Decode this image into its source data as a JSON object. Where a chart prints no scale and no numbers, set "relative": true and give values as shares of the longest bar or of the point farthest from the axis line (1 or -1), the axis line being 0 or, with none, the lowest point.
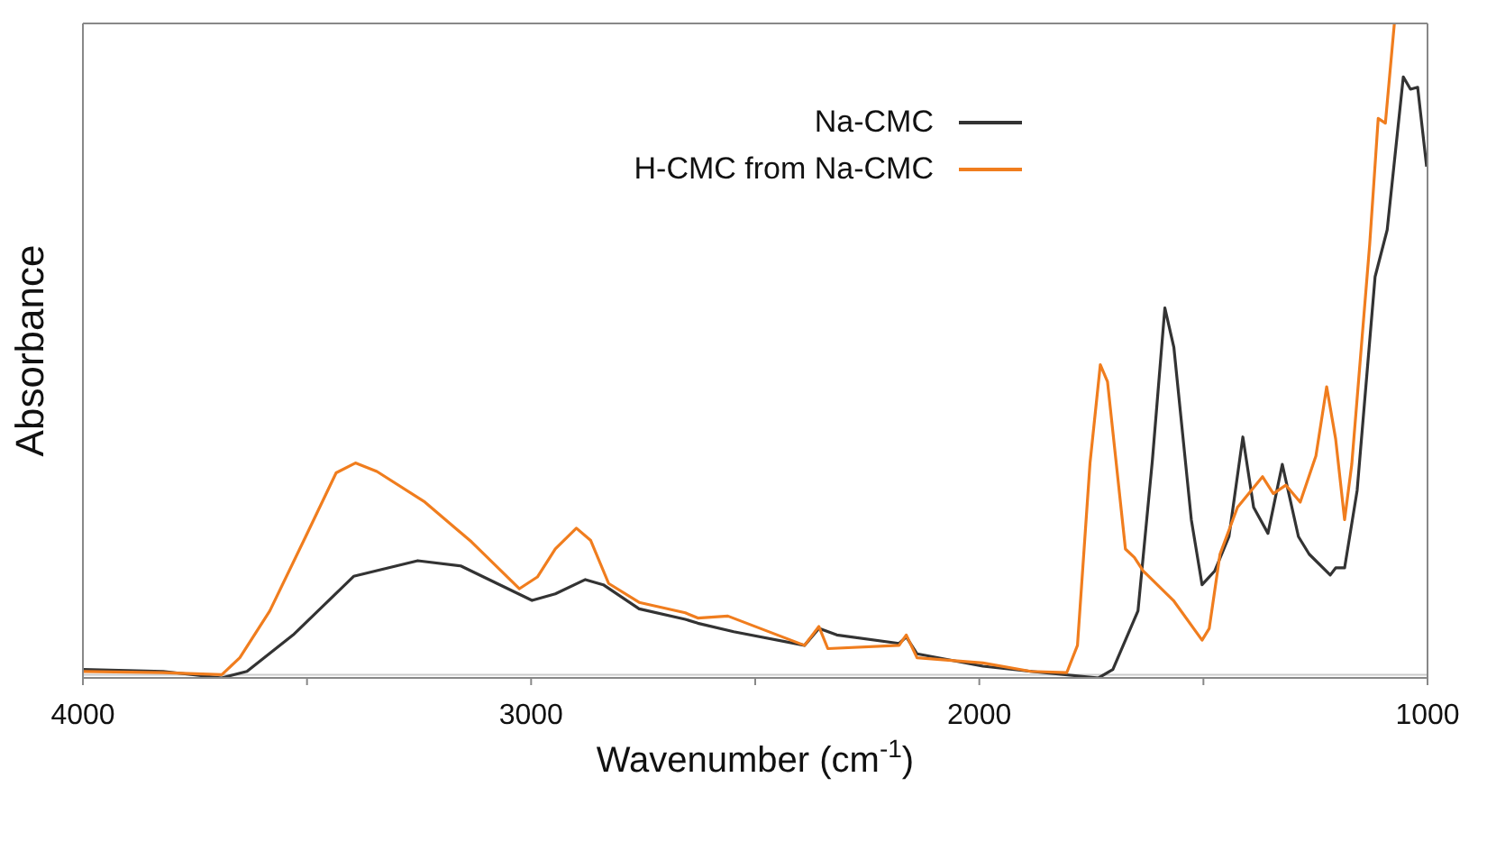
{
  "chart_data": {
    "type": "line",
    "relative": true,
    "xlabel": "Wavenumber (cm$^{-1}$)",
    "ylabel": "Absorbance",
    "xlim": [
      4000,
      1000
    ],
    "xticks": [
      4000,
      {
        "value": 3500,
        "label": null
      },
      3000,
      {
        "value": 2500,
        "label": null
      },
      2000,
      {
        "value": 1500,
        "label": null
      },
      1000
    ],
    "legend": "top right",
    "grid": false,
    "marker": "none",
    "line_style": "solid",
    "series": [
      {
        "name": "Na-CMC",
        "color": "#333333",
        "x": [
          4000,
          3821,
          3690,
          3634,
          3531,
          3396,
          3253,
          3157,
          2998,
          2946,
          2879,
          2839,
          2759,
          2656,
          2628,
          2548,
          2390,
          2358,
          2318,
          2179,
          2163,
          2139,
          1992,
          1885,
          1734,
          1702,
          1646,
          1614,
          1586,
          1566,
          1527,
          1503,
          1475,
          1443,
          1412,
          1388,
          1356,
          1324,
          1288,
          1264,
          1217,
          1205,
          1185,
          1157,
          1117,
          1090,
          1054,
          1038,
          1022,
          1002
        ],
        "values": [
          0.008,
          0.005,
          -0.005,
          0.005,
          0.061,
          0.151,
          0.175,
          0.167,
          0.114,
          0.124,
          0.146,
          0.138,
          0.101,
          0.085,
          0.079,
          0.066,
          0.045,
          0.071,
          0.061,
          0.048,
          0.058,
          0.032,
          0.013,
          0.005,
          -0.005,
          0.008,
          0.098,
          0.328,
          0.563,
          0.503,
          0.238,
          0.138,
          0.159,
          0.212,
          0.365,
          0.257,
          0.217,
          0.323,
          0.212,
          0.185,
          0.153,
          0.164,
          0.164,
          0.283,
          0.611,
          0.683,
          0.918,
          0.899,
          0.902,
          0.78
        ]
      },
      {
        "name": "H-CMC from Na-CMC",
        "color": "#f07d1e",
        "x": [
          4000,
          3821,
          3690,
          3650,
          3583,
          3503,
          3435,
          3392,
          3344,
          3237,
          3133,
          3026,
          2986,
          2946,
          2899,
          2867,
          2827,
          2759,
          2656,
          2628,
          2561,
          2390,
          2358,
          2338,
          2179,
          2163,
          2139,
          1992,
          1885,
          1805,
          1781,
          1753,
          1730,
          1714,
          1674,
          1654,
          1634,
          1567,
          1503,
          1487,
          1463,
          1424,
          1368,
          1344,
          1316,
          1284,
          1249,
          1225,
          1205,
          1185,
          1169,
          1129,
          1110,
          1094,
          1086,
          1074
        ],
        "values": [
          0.005,
          0.003,
          0,
          0.026,
          0.098,
          0.212,
          0.31,
          0.325,
          0.312,
          0.265,
          0.204,
          0.132,
          0.15,
          0.193,
          0.225,
          0.206,
          0.14,
          0.111,
          0.095,
          0.087,
          0.09,
          0.045,
          0.074,
          0.04,
          0.045,
          0.061,
          0.026,
          0.018,
          0.005,
          0.003,
          0.045,
          0.325,
          0.476,
          0.45,
          0.193,
          0.18,
          0.159,
          0.114,
          0.053,
          0.071,
          0.185,
          0.257,
          0.304,
          0.278,
          0.291,
          0.265,
          0.336,
          0.442,
          0.362,
          0.238,
          0.323,
          0.661,
          0.854,
          0.847,
          0.908,
          1.0
        ]
      }
    ]
  }
}
